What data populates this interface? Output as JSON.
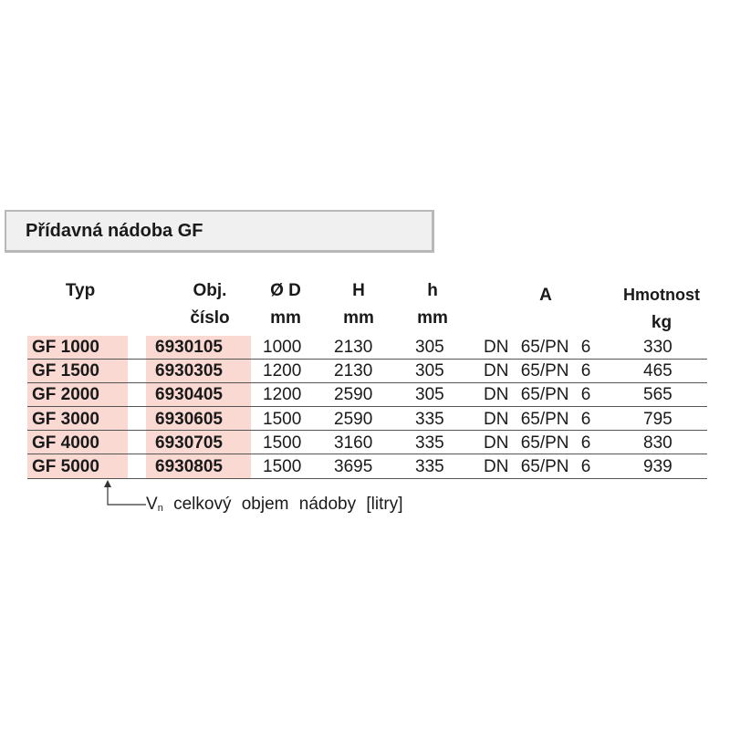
{
  "title": "Přídavná nádoba GF",
  "table": {
    "headers": [
      [
        "Typ"
      ],
      [
        "Obj.",
        "číslo"
      ],
      [
        "Ø D",
        "mm"
      ],
      [
        "H",
        "mm"
      ],
      [
        "h",
        "mm"
      ],
      [
        "A"
      ],
      [
        "Hmotnost",
        "kg"
      ]
    ],
    "rows": [
      [
        "GF 1000",
        "6930105",
        "1000",
        "2130",
        "305",
        "DN 65/PN 6",
        "330"
      ],
      [
        "GF 1500",
        "6930305",
        "1200",
        "2130",
        "305",
        "DN 65/PN 6",
        "465"
      ],
      [
        "GF 2000",
        "6930405",
        "1200",
        "2590",
        "305",
        "DN 65/PN 6",
        "565"
      ],
      [
        "GF 3000",
        "6930605",
        "1500",
        "2590",
        "335",
        "DN 65/PN 6",
        "795"
      ],
      [
        "GF 4000",
        "6930705",
        "1500",
        "3160",
        "335",
        "DN 65/PN 6",
        "830"
      ],
      [
        "GF 5000",
        "6930805",
        "1500",
        "3695",
        "335",
        "DN 65/PN 6",
        "939"
      ]
    ]
  },
  "footnote": {
    "symbol": "V",
    "subscript": "n",
    "text": "celkový objem nádoby [litry]"
  }
}
